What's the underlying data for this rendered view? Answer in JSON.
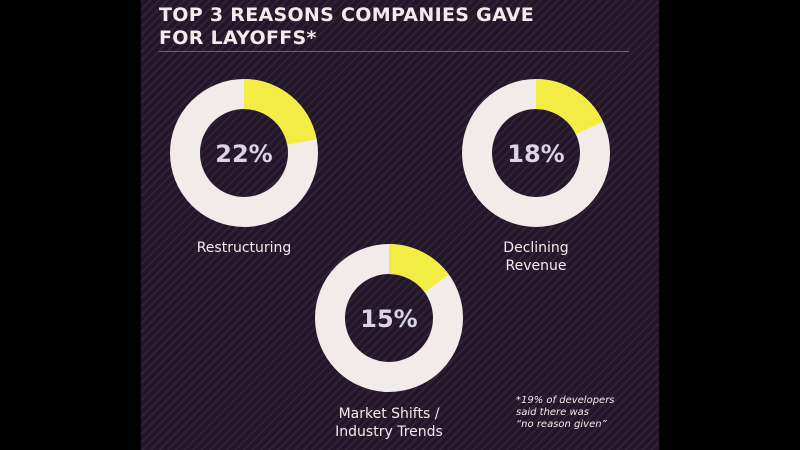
{
  "title": {
    "line1": "TOP 3 REASONS COMPANIES GAVE",
    "line2": "FOR LAYOFFS*"
  },
  "chart_data": {
    "type": "pie",
    "subtype": "donut",
    "series": [
      {
        "name": "Restructuring",
        "value": 22,
        "value_label": "22%",
        "label_lines": [
          "Restructuring"
        ]
      },
      {
        "name": "Declining Revenue",
        "value": 18,
        "value_label": "18%",
        "label_lines": [
          "Declining",
          "Revenue"
        ]
      },
      {
        "name": "Market Shifts / Industry Trends",
        "value": 15,
        "value_label": "15%",
        "label_lines": [
          "Market Shifts /",
          "Industry Trends"
        ]
      }
    ]
  },
  "footnote": {
    "line1": "*19% of developers",
    "line2": "said there was",
    "line3": "“no reason given”"
  },
  "colors": {
    "background": "#231629",
    "accent": "#f3ec45",
    "ring": "#f1ecea",
    "percent_text": "#d9d4e6"
  }
}
